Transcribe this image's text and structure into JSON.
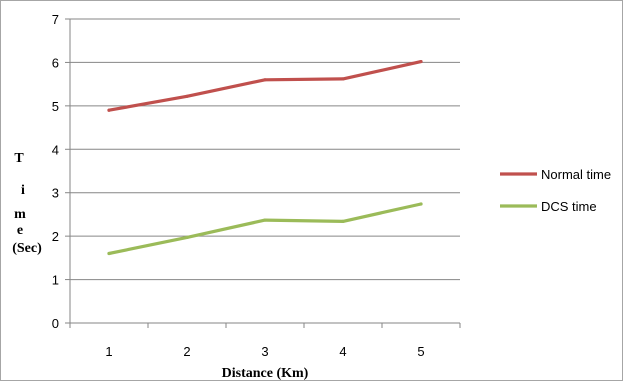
{
  "chart_data": {
    "type": "line",
    "categories": [
      "1",
      "2",
      "3",
      "4",
      "5"
    ],
    "series": [
      {
        "name": "Normal time",
        "values": [
          4.9,
          5.22,
          5.6,
          5.62,
          6.02
        ],
        "color": "#c0504d"
      },
      {
        "name": "DCS time",
        "values": [
          1.6,
          1.97,
          2.37,
          2.34,
          2.74
        ],
        "color": "#9bbb59"
      }
    ],
    "yticks": [
      "0",
      "1",
      "2",
      "3",
      "4",
      "5",
      "6",
      "7"
    ],
    "ylim": [
      0,
      7
    ],
    "xlabel": "Distance (Km)",
    "ylabel_lines": [
      "T",
      "i",
      "m",
      "e",
      "(Sec)"
    ],
    "grid": true,
    "legend_position": "right"
  }
}
